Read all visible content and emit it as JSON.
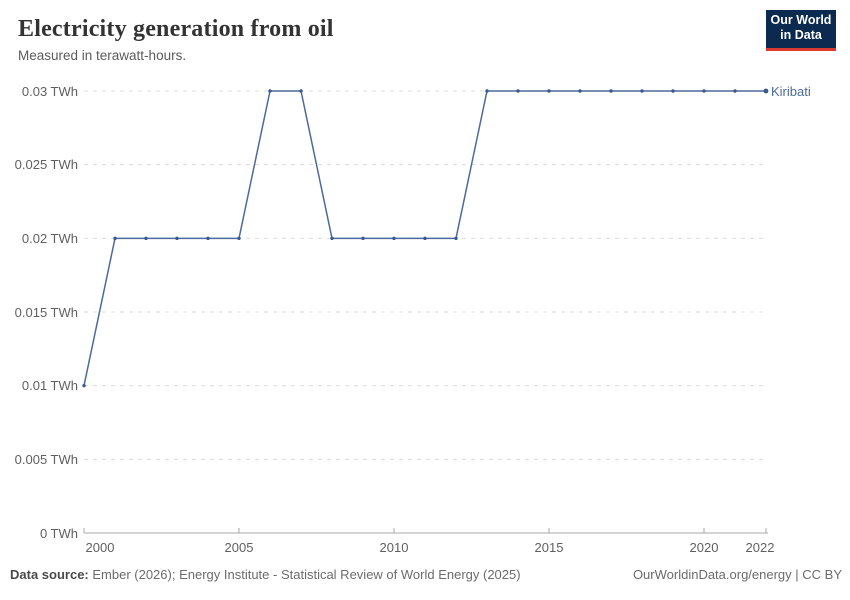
{
  "header": {
    "title": "Electricity generation from oil",
    "subtitle": "Measured in terawatt-hours.",
    "logo_line1": "Our World",
    "logo_line2": "in Data"
  },
  "chart_data": {
    "type": "line",
    "title": "Electricity generation from oil",
    "subtitle": "Measured in terawatt-hours.",
    "x": [
      2000,
      2001,
      2002,
      2003,
      2004,
      2005,
      2006,
      2007,
      2008,
      2009,
      2010,
      2011,
      2012,
      2013,
      2014,
      2015,
      2016,
      2017,
      2018,
      2019,
      2020,
      2021,
      2022
    ],
    "series": [
      {
        "name": "Kiribati",
        "unit": "TWh",
        "values": [
          0.01,
          0.02,
          0.02,
          0.02,
          0.02,
          0.02,
          0.03,
          0.03,
          0.02,
          0.02,
          0.02,
          0.02,
          0.02,
          0.03,
          0.03,
          0.03,
          0.03,
          0.03,
          0.03,
          0.03,
          0.03,
          0.03,
          0.03
        ]
      }
    ],
    "xlabel": "",
    "ylabel": "TWh",
    "xlim": [
      2000,
      2022
    ],
    "ylim": [
      0,
      0.03
    ],
    "yticks": [
      0,
      0.005,
      0.01,
      0.015,
      0.02,
      0.025,
      0.03
    ],
    "ytick_labels": [
      "0 TWh",
      "0.005 TWh",
      "0.01 TWh",
      "0.015 TWh",
      "0.02 TWh",
      "0.025 TWh",
      "0.03 TWh"
    ],
    "xticks": [
      2000,
      2005,
      2010,
      2015,
      2020,
      2022
    ],
    "xtick_labels": [
      "2000",
      "2005",
      "2010",
      "2015",
      "2020",
      "2022"
    ],
    "grid": "horizontal-dashed",
    "legend_position": "line-end-label"
  },
  "footer": {
    "data_source_label": "Data source:",
    "data_source_text": " Ember (2026); Energy Institute - Statistical Review of World Energy (2025)",
    "attribution": "OurWorldinData.org/energy | CC BY"
  },
  "colors": {
    "line": "#4c6a9c",
    "marker": "#3a5a8f",
    "grid": "#dcdcdc",
    "axis": "#a8a8a8",
    "tick_text": "#606060",
    "entity_label": "#4c6a9c",
    "logo_bg": "#0c2a50",
    "logo_red": "#dc3a2f"
  }
}
